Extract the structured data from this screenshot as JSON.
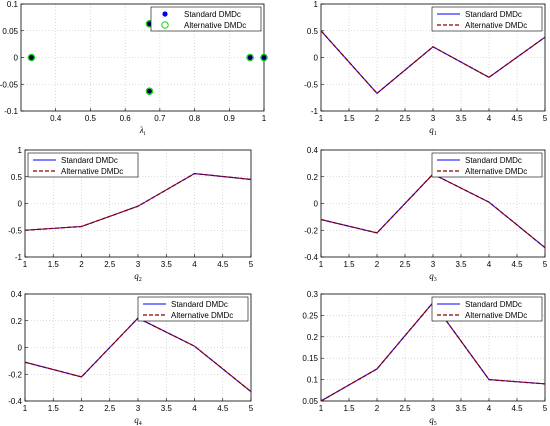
{
  "colors": {
    "standard": "#0000ff",
    "alternative": "#8b0000",
    "alt_dash": "#ff0000",
    "marker_standard": "#0000ff",
    "marker_alternative": "#00cc00",
    "grid": "#bfbfbf"
  },
  "chart_data": [
    {
      "type": "scatter",
      "xlabel": "λ",
      "xlabel_sub": "i",
      "xlim": [
        0.3,
        1.0
      ],
      "ylim": [
        -0.1,
        0.1
      ],
      "xticks": [
        "0.4",
        "0.5",
        "0.6",
        "0.7",
        "0.8",
        "0.9",
        "1"
      ],
      "yticks": [
        "0.1",
        "0.05",
        "0",
        "-0.05",
        "-0.1"
      ],
      "grid": true,
      "legend_position": "top-right",
      "series": [
        {
          "name": "Standard DMDc",
          "x": [
            0.33,
            0.67,
            0.67,
            0.96,
            1.0
          ],
          "y": [
            0,
            0.063,
            -0.063,
            0,
            0
          ]
        },
        {
          "name": "Alternative DMDc",
          "x": [
            0.33,
            0.67,
            0.67,
            0.96,
            1.0
          ],
          "y": [
            0,
            0.063,
            -0.063,
            0,
            0
          ]
        }
      ]
    },
    {
      "type": "line",
      "xlabel": "q",
      "xlabel_sub": "1",
      "x": [
        1,
        2,
        3,
        4,
        5
      ],
      "xlim": [
        1,
        5
      ],
      "ylim": [
        -1,
        1
      ],
      "xticks": [
        "1",
        "1.5",
        "2",
        "2.5",
        "3",
        "3.5",
        "4",
        "4.5",
        "5"
      ],
      "yticks": [
        "1",
        "0.5",
        "0",
        "-0.5",
        "-1"
      ],
      "grid": true,
      "legend_position": "top-right",
      "series": [
        {
          "name": "Standard DMDc",
          "values": [
            0.5,
            -0.67,
            0.2,
            -0.37,
            0.38
          ]
        },
        {
          "name": "Alternative DMDc",
          "values": [
            0.5,
            -0.67,
            0.2,
            -0.37,
            0.38
          ]
        }
      ]
    },
    {
      "type": "line",
      "xlabel": "q",
      "xlabel_sub": "2",
      "x": [
        1,
        2,
        3,
        4,
        5
      ],
      "xlim": [
        1,
        5
      ],
      "ylim": [
        -1,
        1
      ],
      "xticks": [
        "1",
        "1.5",
        "2",
        "2.5",
        "3",
        "3.5",
        "4",
        "4.5",
        "5"
      ],
      "yticks": [
        "1",
        "0.5",
        "0",
        "-0.5",
        "-1"
      ],
      "grid": true,
      "legend_position": "top-left",
      "series": [
        {
          "name": "Standard DMDc",
          "values": [
            -0.5,
            -0.43,
            -0.05,
            0.56,
            0.45
          ]
        },
        {
          "name": "Alternative DMDc",
          "values": [
            -0.5,
            -0.43,
            -0.05,
            0.56,
            0.45
          ]
        }
      ]
    },
    {
      "type": "line",
      "xlabel": "q",
      "xlabel_sub": "3",
      "x": [
        1,
        2,
        3,
        4,
        5
      ],
      "xlim": [
        1,
        5
      ],
      "ylim": [
        -0.4,
        0.4
      ],
      "xticks": [
        "1",
        "1.5",
        "2",
        "2.5",
        "3",
        "3.5",
        "4",
        "4.5",
        "5"
      ],
      "yticks": [
        "0.4",
        "0.2",
        "0",
        "-0.2",
        "-0.4"
      ],
      "grid": true,
      "legend_position": "top-right",
      "series": [
        {
          "name": "Standard DMDc",
          "values": [
            -0.12,
            -0.22,
            0.22,
            0.01,
            -0.33
          ]
        },
        {
          "name": "Alternative DMDc",
          "values": [
            -0.12,
            -0.22,
            0.22,
            0.01,
            -0.33
          ]
        }
      ]
    },
    {
      "type": "line",
      "xlabel": "q",
      "xlabel_sub": "4",
      "x": [
        1,
        2,
        3,
        4,
        5
      ],
      "xlim": [
        1,
        5
      ],
      "ylim": [
        -0.4,
        0.4
      ],
      "xticks": [
        "1",
        "1.5",
        "2",
        "2.5",
        "3",
        "3.5",
        "4",
        "4.5",
        "5"
      ],
      "yticks": [
        "0.4",
        "0.2",
        "0",
        "-0.2",
        "-0.4"
      ],
      "grid": true,
      "legend_position": "top-right",
      "series": [
        {
          "name": "Standard DMDc",
          "values": [
            -0.11,
            -0.22,
            0.22,
            0.01,
            -0.33
          ]
        },
        {
          "name": "Alternative DMDc",
          "values": [
            -0.11,
            -0.22,
            0.22,
            0.01,
            -0.33
          ]
        }
      ]
    },
    {
      "type": "line",
      "xlabel": "q",
      "xlabel_sub": "5",
      "x": [
        1,
        2,
        3,
        4,
        5
      ],
      "xlim": [
        1,
        5
      ],
      "ylim": [
        0.05,
        0.3
      ],
      "xticks": [
        "1",
        "1.5",
        "2",
        "2.5",
        "3",
        "3.5",
        "4",
        "4.5",
        "5"
      ],
      "yticks": [
        "0.3",
        "0.25",
        "0.2",
        "0.15",
        "0.1",
        "0.05"
      ],
      "grid": true,
      "legend_position": "top-right",
      "series": [
        {
          "name": "Standard DMDc",
          "values": [
            0.05,
            0.125,
            0.28,
            0.1,
            0.09
          ]
        },
        {
          "name": "Alternative DMDc",
          "values": [
            0.05,
            0.125,
            0.28,
            0.1,
            0.09
          ]
        }
      ]
    }
  ]
}
